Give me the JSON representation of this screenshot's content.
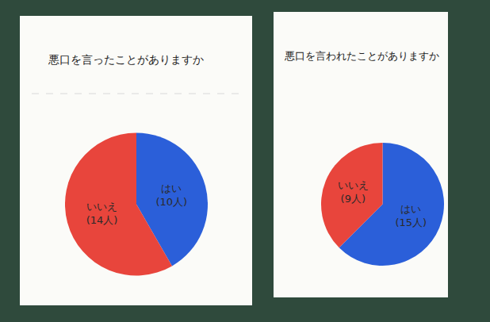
{
  "chart_data": [
    {
      "type": "pie",
      "title": "悪口を言ったことがありますか",
      "categories": [
        "はい",
        "いいえ"
      ],
      "values": [
        10,
        14
      ],
      "value_labels": [
        "(10人)",
        "(14人)"
      ],
      "colors": [
        "#2b5fd9",
        "#e8453c"
      ],
      "data_labels": true
    },
    {
      "type": "pie",
      "title": "悪口を言われたことがありますか",
      "categories": [
        "はい",
        "いいえ"
      ],
      "values": [
        15,
        9
      ],
      "value_labels": [
        "(15人)",
        "(9人)"
      ],
      "colors": [
        "#2b5fd9",
        "#e8453c"
      ],
      "data_labels": true
    }
  ]
}
